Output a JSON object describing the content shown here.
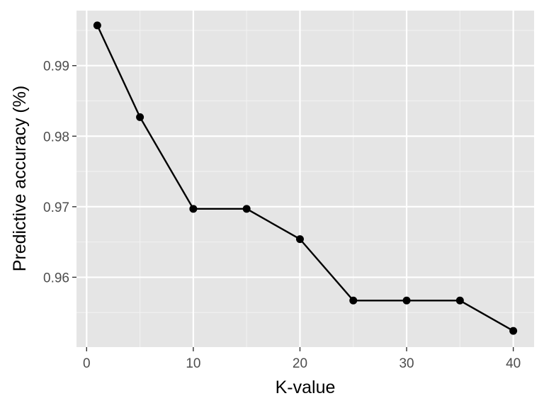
{
  "chart_data": {
    "type": "line",
    "xlabel": "K-value",
    "ylabel": "Predictive accuracy (%)",
    "xlim": [
      -0.95,
      41.95
    ],
    "ylim": [
      0.9501,
      0.9978
    ],
    "x_ticks": [
      0,
      10,
      20,
      30,
      40
    ],
    "y_ticks": [
      0.96,
      0.97,
      0.98,
      0.99
    ],
    "x_tick_labels": [
      "0",
      "10",
      "20",
      "30",
      "40"
    ],
    "y_tick_labels": [
      "0.96",
      "0.97",
      "0.98",
      "0.99"
    ],
    "grid": true,
    "legend": "none",
    "series": [
      {
        "x": [
          1,
          5,
          10,
          15,
          20,
          25,
          30,
          35,
          40
        ],
        "values": [
          0.9957,
          0.9827,
          0.9697,
          0.9697,
          0.9654,
          0.9567,
          0.9567,
          0.9567,
          0.9524
        ]
      }
    ],
    "colors": {
      "panel": "#e5e5e5",
      "grid": "#ffffff",
      "line": "#000000",
      "text": "#4d4d4d"
    }
  }
}
